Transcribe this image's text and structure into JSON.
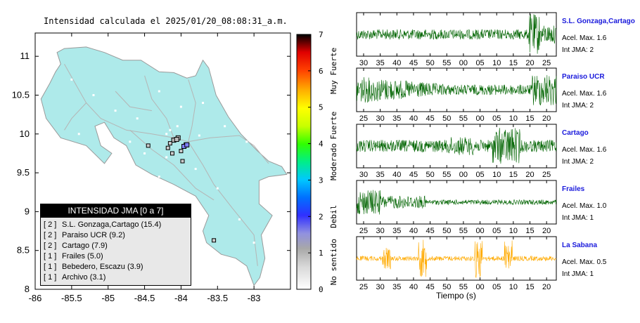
{
  "title": "Intensidad calculada el 2025/01/20_08:08:31_a.m.",
  "map": {
    "lon_ticks": [
      "-86",
      "-85.5",
      "-85",
      "-84.5",
      "-84",
      "-83.5",
      "-83"
    ],
    "lat_ticks": [
      "11",
      "10.5",
      "10",
      "9.5",
      "9",
      "8.5",
      "8"
    ],
    "land_color": "#aeeaea",
    "station_marker_color": "#999999"
  },
  "legend": {
    "title": "INTENSIDAD JMA [0 a 7]",
    "items": [
      {
        "level": "[ 2 ]",
        "name": "S.L. Gonzaga,Cartago (15.4)"
      },
      {
        "level": "[ 2 ]",
        "name": "Paraiso UCR (9.2)"
      },
      {
        "level": "[ 2 ]",
        "name": "Cartago (7.9)"
      },
      {
        "level": "[ 1 ]",
        "name": "Frailes (5.0)"
      },
      {
        "level": "[ 1 ]",
        "name": "Bebedero, Escazu (3.9)"
      },
      {
        "level": "[ 1 ]",
        "name": "Archivo (3.1)"
      }
    ]
  },
  "colorbar": {
    "ticks": [
      "0",
      "1",
      "2",
      "3",
      "4",
      "5",
      "6",
      "7"
    ],
    "category_labels": [
      "No sentido",
      "Debil",
      "Moderado",
      "Fuerte",
      "Muy Fuerte"
    ]
  },
  "traces_panel": {
    "xlabel": "Tiempo (s)"
  },
  "chart_data": [
    {
      "type": "heatmap",
      "description_kind": "intensity-map",
      "xlim": [
        -86,
        -82.5
      ],
      "ylim": [
        8,
        11.3
      ],
      "stations_plotted": [
        {
          "lon": -83.93,
          "lat": 9.86,
          "intensity": 2
        },
        {
          "lon": -83.96,
          "lat": 9.84,
          "intensity": 2
        },
        {
          "lon": -83.92,
          "lat": 9.86,
          "intensity": 2
        },
        {
          "lon": -84.04,
          "lat": 9.95,
          "intensity": 1
        },
        {
          "lon": -84.1,
          "lat": 9.92,
          "intensity": 1
        },
        {
          "lon": -84.06,
          "lat": 9.93,
          "intensity": 1
        }
      ],
      "colorbar_range": [
        0,
        7
      ]
    },
    {
      "type": "line",
      "traces": [
        {
          "station": "S.L. Gonzaga,Cartago",
          "acel_max": "Acel. Max. 1.6",
          "int_jma": "Int JMA: 2",
          "color": "#006400",
          "ticks": [
            "30",
            "35",
            "40",
            "45",
            "50",
            "55",
            "00",
            "05",
            "10",
            "15",
            "20",
            "25"
          ]
        },
        {
          "station": "Paraiso UCR",
          "acel_max": "Acel. Max. 1.6",
          "int_jma": "Int JMA: 2",
          "color": "#006400",
          "ticks": [
            "25",
            "30",
            "35",
            "40",
            "45",
            "50",
            "55",
            "00",
            "05",
            "10",
            "15",
            "20"
          ]
        },
        {
          "station": "Cartago",
          "acel_max": "Acel. Max. 1.6",
          "int_jma": "Int JMA: 2",
          "color": "#006400",
          "ticks": [
            "30",
            "35",
            "40",
            "45",
            "50",
            "55",
            "00",
            "05",
            "10",
            "15",
            "20",
            "25"
          ]
        },
        {
          "station": "Frailes",
          "acel_max": "Acel. Max. 1.0",
          "int_jma": "Int JMA: 1",
          "color": "#006400",
          "ticks": [
            "25",
            "30",
            "35",
            "40",
            "45",
            "50",
            "55",
            "00",
            "05",
            "10",
            "15",
            "20"
          ]
        },
        {
          "station": "La Sabana",
          "acel_max": "Acel. Max. 0.5",
          "int_jma": "Int JMA: 1",
          "color": "#ffaa00",
          "ticks": [
            "25",
            "30",
            "35",
            "40",
            "45",
            "50",
            "55",
            "00",
            "05",
            "10",
            "15",
            "20"
          ]
        }
      ]
    }
  ]
}
